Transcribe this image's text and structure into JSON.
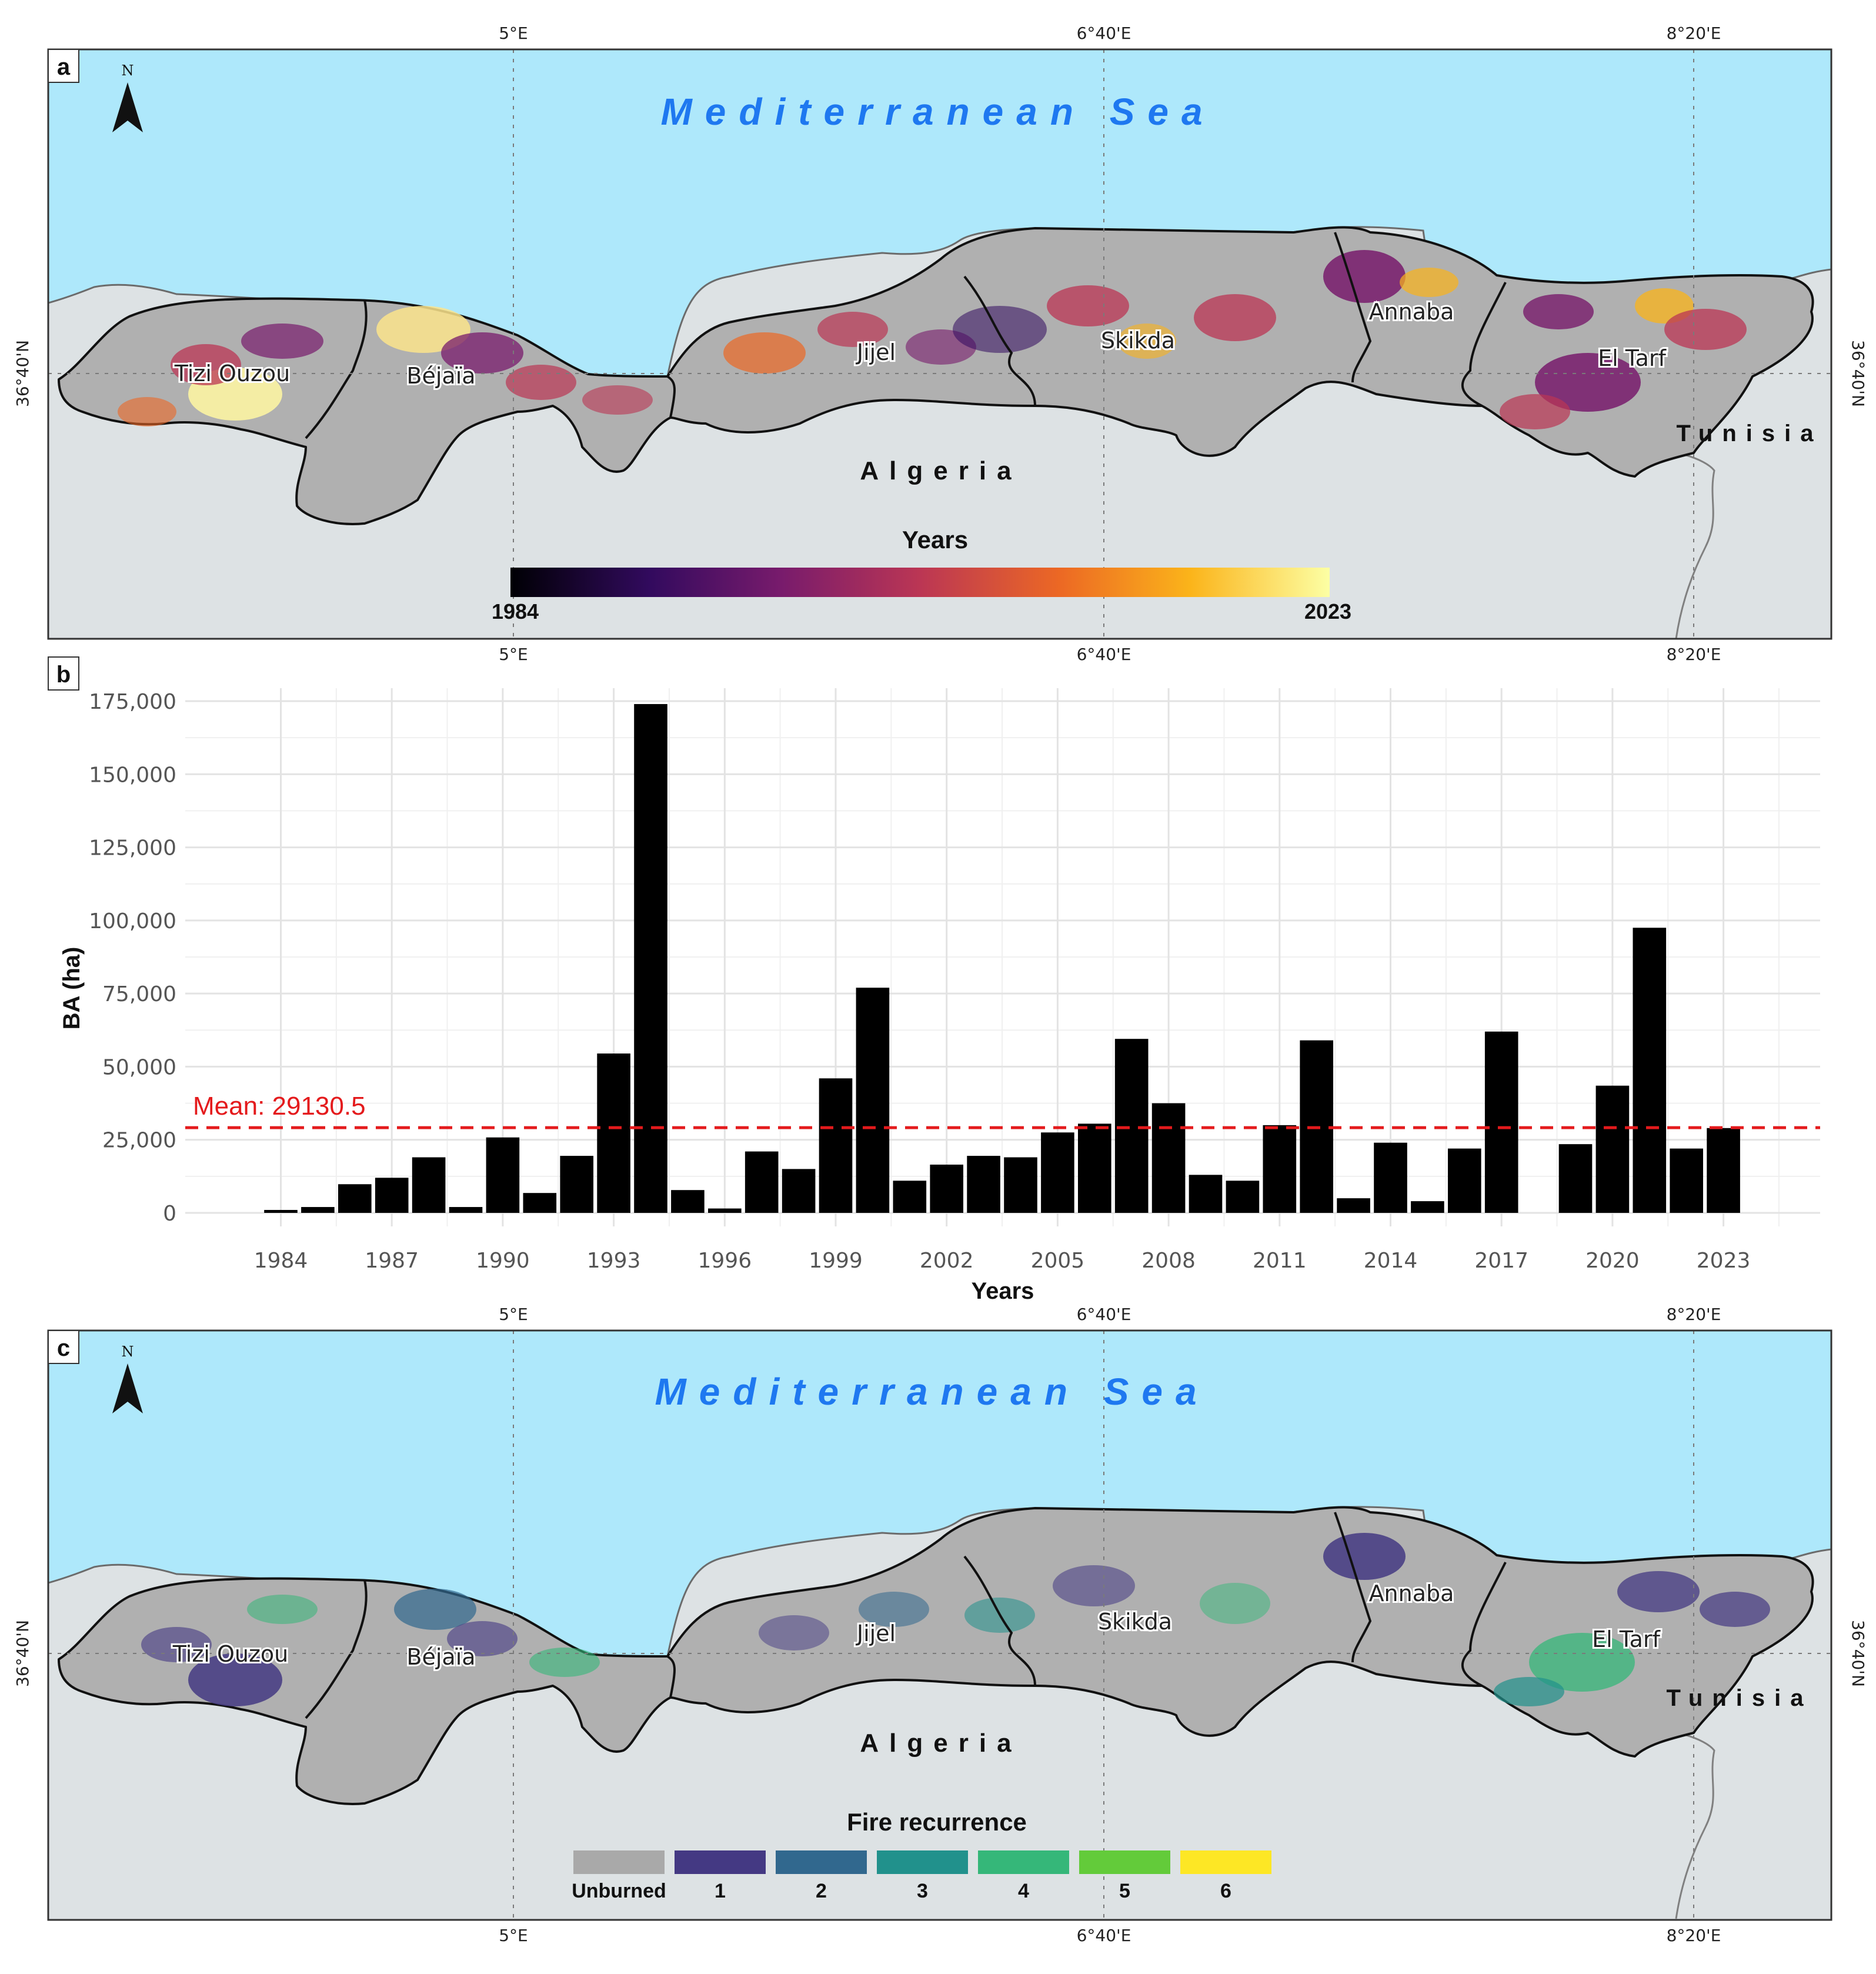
{
  "panel_a": {
    "label": "a",
    "sea_label": "Mediterranean Sea",
    "country_label": "Algeria",
    "neighbor_label": "Tunisia",
    "north_label": "N",
    "lon_labels": [
      "5°E",
      "6°40'E",
      "8°20'E"
    ],
    "lat_label": "36°40'N",
    "regions": [
      "Tizi Ouzou",
      "Béjaïa",
      "Jijel",
      "Skikda",
      "Annaba",
      "El Tarf"
    ],
    "legend": {
      "title": "Years",
      "min_label": "1984",
      "max_label": "2023",
      "colors": [
        "#000004",
        "#320a5e",
        "#781b6c",
        "#bb3654",
        "#ec6824",
        "#fbb41a",
        "#fcffa4"
      ]
    }
  },
  "panel_b": {
    "label": "b",
    "mean_label": "Mean: 29130.5",
    "mean_color": "#e41a1c",
    "bar_color": "#000000"
  },
  "panel_c": {
    "label": "c",
    "sea_label": "Mediterranean Sea",
    "country_label": "Algeria",
    "neighbor_label": "Tunisia",
    "north_label": "N",
    "lon_labels": [
      "5°E",
      "6°40'E",
      "8°20'E"
    ],
    "lat_label": "36°40'N",
    "regions": [
      "Tizi Ouzou",
      "Béjaïa",
      "Jijel",
      "Skikda",
      "Annaba",
      "El Tarf"
    ],
    "legend": {
      "title": "Fire recurrence",
      "items": [
        {
          "label": "Unburned",
          "color": "#a9a9a9"
        },
        {
          "label": "1",
          "color": "#443983"
        },
        {
          "label": "2",
          "color": "#31688e"
        },
        {
          "label": "3",
          "color": "#21918c"
        },
        {
          "label": "4",
          "color": "#35b779"
        },
        {
          "label": "5",
          "color": "#63cb3a"
        },
        {
          "label": "6",
          "color": "#fde725"
        }
      ]
    }
  },
  "chart_data": {
    "type": "bar",
    "xlabel": "Years",
    "ylabel": "BA (ha)",
    "ylim": [
      0,
      175000
    ],
    "yticks": [
      0,
      25000,
      50000,
      75000,
      100000,
      125000,
      150000,
      175000
    ],
    "ytick_labels": [
      "0",
      "25,000",
      "50,000",
      "75,000",
      "100,000",
      "125,000",
      "150,000",
      "175,000"
    ],
    "xticks": [
      "1984",
      "1987",
      "1990",
      "1993",
      "1996",
      "1999",
      "2002",
      "2005",
      "2008",
      "2011",
      "2014",
      "2017",
      "2020",
      "2023"
    ],
    "grid": true,
    "mean": 29130.5,
    "categories": [
      "1984",
      "1985",
      "1986",
      "1987",
      "1988",
      "1989",
      "1990",
      "1991",
      "1992",
      "1993",
      "1994",
      "1995",
      "1996",
      "1997",
      "1998",
      "1999",
      "2000",
      "2001",
      "2002",
      "2003",
      "2004",
      "2005",
      "2006",
      "2007",
      "2008",
      "2009",
      "2010",
      "2011",
      "2012",
      "2013",
      "2014",
      "2015",
      "2016",
      "2017",
      "2018",
      "2019",
      "2020",
      "2021",
      "2022",
      "2023"
    ],
    "values": [
      1000,
      2000,
      9800,
      12000,
      19000,
      2000,
      25800,
      6800,
      19500,
      54500,
      174000,
      7800,
      1500,
      21000,
      15000,
      46000,
      77000,
      11000,
      16500,
      19500,
      19000,
      27500,
      30500,
      59500,
      37500,
      13000,
      11000,
      30000,
      59000,
      5000,
      24000,
      4000,
      22000,
      62000,
      0,
      23500,
      43500,
      97500,
      22000,
      29000
    ]
  }
}
